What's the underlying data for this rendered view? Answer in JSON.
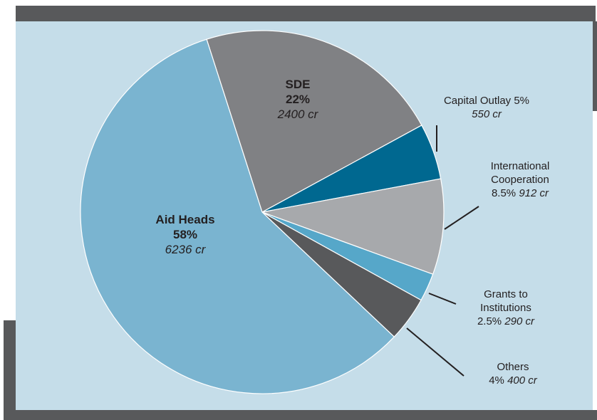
{
  "chart_data": {
    "type": "pie",
    "categories": [
      "SDE",
      "Capital Outlay",
      "International Cooperation",
      "Grants to Institutions",
      "Others",
      "Aid Heads"
    ],
    "values": [
      22,
      5,
      8.5,
      2.5,
      4,
      58
    ],
    "value_labels": [
      "22%",
      "5%",
      "8.5%",
      "2.5%",
      "4%",
      "58%"
    ],
    "amount_labels": [
      "2400 cr",
      "550 cr",
      "912 cr",
      "290 cr",
      "400 cr",
      "6236 cr"
    ],
    "colors": [
      "#808184",
      "#006890",
      "#a7a9ac",
      "#56a7c9",
      "#58595b",
      "#7ab4d0"
    ]
  }
}
